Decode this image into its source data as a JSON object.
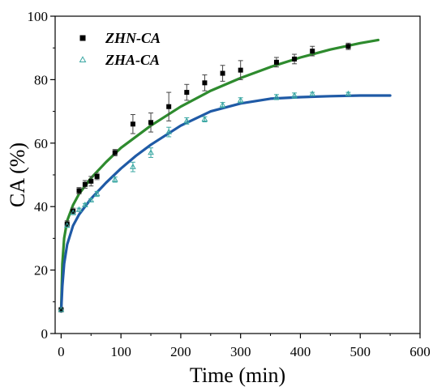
{
  "chart_data": {
    "type": "scatter",
    "xlabel": "Time (min)",
    "ylabel": "CA (%)",
    "xlim": [
      -10,
      600
    ],
    "ylim": [
      0,
      100
    ],
    "xticks": [
      0,
      100,
      200,
      300,
      400,
      500,
      600
    ],
    "yticks": [
      0,
      20,
      40,
      60,
      80,
      100
    ],
    "grid": false,
    "legend_position": "top-left",
    "series": [
      {
        "name": "ZHN-CA",
        "marker": "square",
        "color": "#000000",
        "fit_color": "#2e8b2e",
        "points": [
          {
            "x": 0,
            "y": 7.5,
            "err": 0.5
          },
          {
            "x": 10,
            "y": 34.5,
            "err": 1.0
          },
          {
            "x": 20,
            "y": 38.5,
            "err": 1.0
          },
          {
            "x": 30,
            "y": 45,
            "err": 1.0
          },
          {
            "x": 40,
            "y": 47,
            "err": 1.2
          },
          {
            "x": 50,
            "y": 48,
            "err": 1.5
          },
          {
            "x": 60,
            "y": 49.5,
            "err": 1.0
          },
          {
            "x": 90,
            "y": 57,
            "err": 1.0
          },
          {
            "x": 120,
            "y": 66,
            "err": 3.0
          },
          {
            "x": 150,
            "y": 66.5,
            "err": 3.0
          },
          {
            "x": 180,
            "y": 71.5,
            "err": 4.5
          },
          {
            "x": 210,
            "y": 76,
            "err": 2.5
          },
          {
            "x": 240,
            "y": 79,
            "err": 2.5
          },
          {
            "x": 270,
            "y": 82,
            "err": 2.5
          },
          {
            "x": 300,
            "y": 83,
            "err": 3.0
          },
          {
            "x": 360,
            "y": 85.5,
            "err": 1.5
          },
          {
            "x": 390,
            "y": 86.5,
            "err": 1.5
          },
          {
            "x": 420,
            "y": 89,
            "err": 1.5
          },
          {
            "x": 480,
            "y": 90.5,
            "err": 1.0
          }
        ],
        "fit": [
          {
            "x": 0,
            "y": 7
          },
          {
            "x": 2,
            "y": 22
          },
          {
            "x": 5,
            "y": 30
          },
          {
            "x": 10,
            "y": 35.5
          },
          {
            "x": 20,
            "y": 40.5
          },
          {
            "x": 30,
            "y": 44
          },
          {
            "x": 50,
            "y": 49
          },
          {
            "x": 75,
            "y": 54
          },
          {
            "x": 100,
            "y": 58.5
          },
          {
            "x": 150,
            "y": 65.5
          },
          {
            "x": 200,
            "y": 71.5
          },
          {
            "x": 250,
            "y": 76.5
          },
          {
            "x": 300,
            "y": 80.5
          },
          {
            "x": 350,
            "y": 84
          },
          {
            "x": 400,
            "y": 87
          },
          {
            "x": 450,
            "y": 89.5
          },
          {
            "x": 500,
            "y": 91.5
          },
          {
            "x": 530,
            "y": 92.5
          }
        ]
      },
      {
        "name": "ZHA-CA",
        "marker": "open-triangle",
        "color": "#3aa7a3",
        "fit_color": "#1f5aa6",
        "points": [
          {
            "x": 0,
            "y": 7.5,
            "err": 0.5
          },
          {
            "x": 10,
            "y": 34,
            "err": 0.5
          },
          {
            "x": 20,
            "y": 38,
            "err": 0.5
          },
          {
            "x": 30,
            "y": 39,
            "err": 0.5
          },
          {
            "x": 40,
            "y": 40.5,
            "err": 0.5
          },
          {
            "x": 50,
            "y": 42,
            "err": 0.5
          },
          {
            "x": 60,
            "y": 44,
            "err": 0.8
          },
          {
            "x": 90,
            "y": 48.5,
            "err": 0.8
          },
          {
            "x": 120,
            "y": 52.5,
            "err": 1.5
          },
          {
            "x": 150,
            "y": 57,
            "err": 1.5
          },
          {
            "x": 180,
            "y": 63.5,
            "err": 1.5
          },
          {
            "x": 210,
            "y": 67,
            "err": 1.0
          },
          {
            "x": 240,
            "y": 67.5,
            "err": 0.8
          },
          {
            "x": 270,
            "y": 72,
            "err": 0.8
          },
          {
            "x": 300,
            "y": 73.5,
            "err": 0.8
          },
          {
            "x": 360,
            "y": 74.5,
            "err": 0.8
          },
          {
            "x": 390,
            "y": 75,
            "err": 0.8
          },
          {
            "x": 420,
            "y": 75.5,
            "err": 0.5
          },
          {
            "x": 480,
            "y": 75.5,
            "err": 0.5
          }
        ],
        "fit": [
          {
            "x": 0,
            "y": 7
          },
          {
            "x": 2,
            "y": 15
          },
          {
            "x": 5,
            "y": 22
          },
          {
            "x": 10,
            "y": 28
          },
          {
            "x": 20,
            "y": 34
          },
          {
            "x": 30,
            "y": 37.5
          },
          {
            "x": 50,
            "y": 42.5
          },
          {
            "x": 75,
            "y": 47.5
          },
          {
            "x": 100,
            "y": 52
          },
          {
            "x": 125,
            "y": 56
          },
          {
            "x": 150,
            "y": 59.5
          },
          {
            "x": 200,
            "y": 65.5
          },
          {
            "x": 250,
            "y": 70
          },
          {
            "x": 300,
            "y": 72.5
          },
          {
            "x": 350,
            "y": 74
          },
          {
            "x": 400,
            "y": 74.5
          },
          {
            "x": 450,
            "y": 74.8
          },
          {
            "x": 500,
            "y": 75
          },
          {
            "x": 550,
            "y": 75
          }
        ]
      }
    ]
  }
}
